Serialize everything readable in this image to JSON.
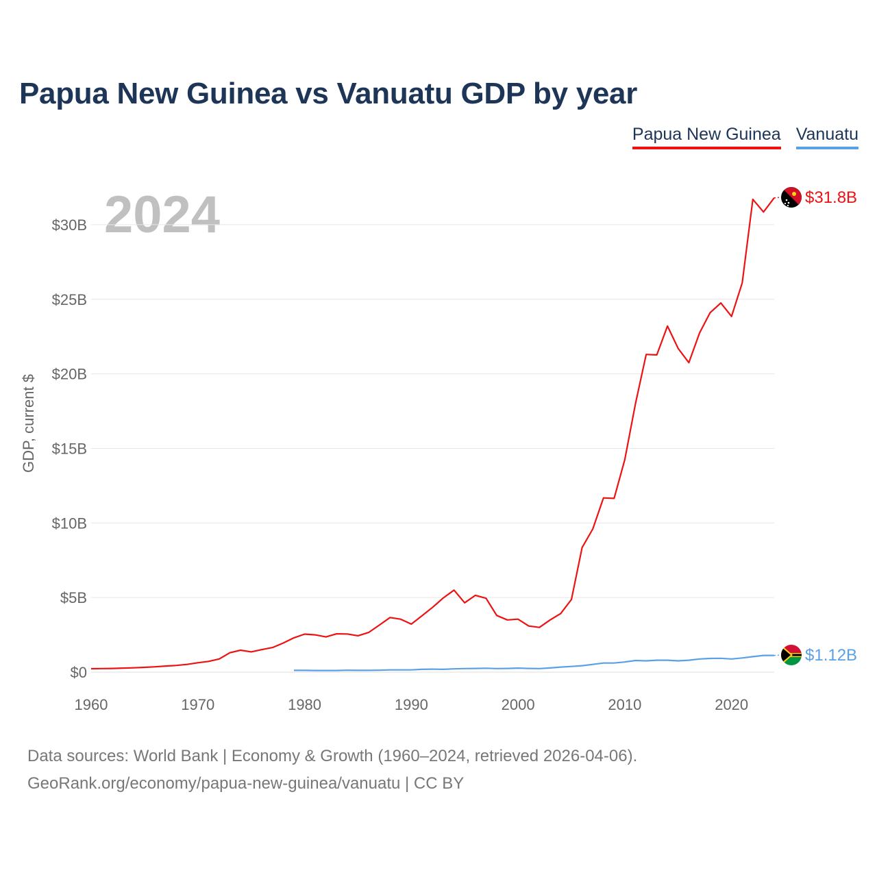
{
  "colors": {
    "png": "#ee1111",
    "vut": "#5aa0e6",
    "title": "#1d3557"
  },
  "chart_data": {
    "type": "line",
    "title": "Papua New Guinea vs Vanuatu GDP by year",
    "year_label": "2024",
    "ylabel": "GDP, current $",
    "xlabel": "",
    "xlim": [
      1960,
      2024
    ],
    "ylim": [
      0,
      33
    ],
    "x_ticks": [
      1960,
      1970,
      1980,
      1990,
      2000,
      2010,
      2020
    ],
    "y_ticks": [
      {
        "value": 0,
        "label": "$0"
      },
      {
        "value": 5,
        "label": "$5B"
      },
      {
        "value": 10,
        "label": "$10B"
      },
      {
        "value": 15,
        "label": "$15B"
      },
      {
        "value": 20,
        "label": "$20B"
      },
      {
        "value": 25,
        "label": "$25B"
      },
      {
        "value": 30,
        "label": "$30B"
      }
    ],
    "units": "billions USD",
    "series": [
      {
        "name": "Papua New Guinea",
        "key": "png",
        "end_label": "$31.8B",
        "flag_icon": "papua-new-guinea-flag-icon",
        "x": [
          1960,
          1961,
          1962,
          1963,
          1964,
          1965,
          1966,
          1967,
          1968,
          1969,
          1970,
          1971,
          1972,
          1973,
          1974,
          1975,
          1976,
          1977,
          1978,
          1979,
          1980,
          1981,
          1982,
          1983,
          1984,
          1985,
          1986,
          1987,
          1988,
          1989,
          1990,
          1991,
          1992,
          1993,
          1994,
          1995,
          1996,
          1997,
          1998,
          1999,
          2000,
          2001,
          2002,
          2003,
          2004,
          2005,
          2006,
          2007,
          2008,
          2009,
          2010,
          2011,
          2012,
          2013,
          2014,
          2015,
          2016,
          2017,
          2018,
          2019,
          2020,
          2021,
          2022,
          2023,
          2024
        ],
        "values": [
          0.23,
          0.24,
          0.25,
          0.27,
          0.29,
          0.32,
          0.36,
          0.41,
          0.45,
          0.52,
          0.63,
          0.72,
          0.88,
          1.3,
          1.47,
          1.36,
          1.51,
          1.65,
          1.95,
          2.3,
          2.55,
          2.5,
          2.36,
          2.57,
          2.56,
          2.44,
          2.66,
          3.15,
          3.66,
          3.55,
          3.22,
          3.78,
          4.35,
          4.98,
          5.5,
          4.65,
          5.15,
          4.95,
          3.8,
          3.5,
          3.55,
          3.09,
          3.0,
          3.5,
          3.93,
          4.87,
          8.35,
          9.6,
          11.68,
          11.65,
          14.25,
          18.0,
          21.3,
          21.27,
          23.2,
          21.7,
          20.75,
          22.74,
          24.1,
          24.75,
          23.85,
          26.1,
          31.7,
          30.85,
          31.8
        ]
      },
      {
        "name": "Vanuatu",
        "key": "vut",
        "end_label": "$1.12B",
        "flag_icon": "vanuatu-flag-icon",
        "x": [
          1979,
          1980,
          1981,
          1982,
          1983,
          1984,
          1985,
          1986,
          1987,
          1988,
          1989,
          1990,
          1991,
          1992,
          1993,
          1994,
          1995,
          1996,
          1997,
          1998,
          1999,
          2000,
          2001,
          2002,
          2003,
          2004,
          2005,
          2006,
          2007,
          2008,
          2009,
          2010,
          2011,
          2012,
          2013,
          2014,
          2015,
          2016,
          2017,
          2018,
          2019,
          2020,
          2021,
          2022,
          2023,
          2024
        ],
        "values": [
          0.12,
          0.12,
          0.11,
          0.11,
          0.11,
          0.13,
          0.12,
          0.12,
          0.13,
          0.15,
          0.15,
          0.15,
          0.19,
          0.2,
          0.19,
          0.22,
          0.24,
          0.25,
          0.26,
          0.24,
          0.25,
          0.27,
          0.25,
          0.24,
          0.28,
          0.34,
          0.38,
          0.43,
          0.52,
          0.61,
          0.61,
          0.68,
          0.78,
          0.76,
          0.8,
          0.8,
          0.76,
          0.8,
          0.88,
          0.92,
          0.93,
          0.88,
          0.95,
          1.04,
          1.12,
          1.12
        ]
      }
    ]
  },
  "source": {
    "line1": "Data sources: World Bank | Economy & Growth (1960–2024, retrieved 2026-04-06).",
    "line2": "GeoRank.org/economy/papua-new-guinea/vanuatu | CC BY"
  }
}
